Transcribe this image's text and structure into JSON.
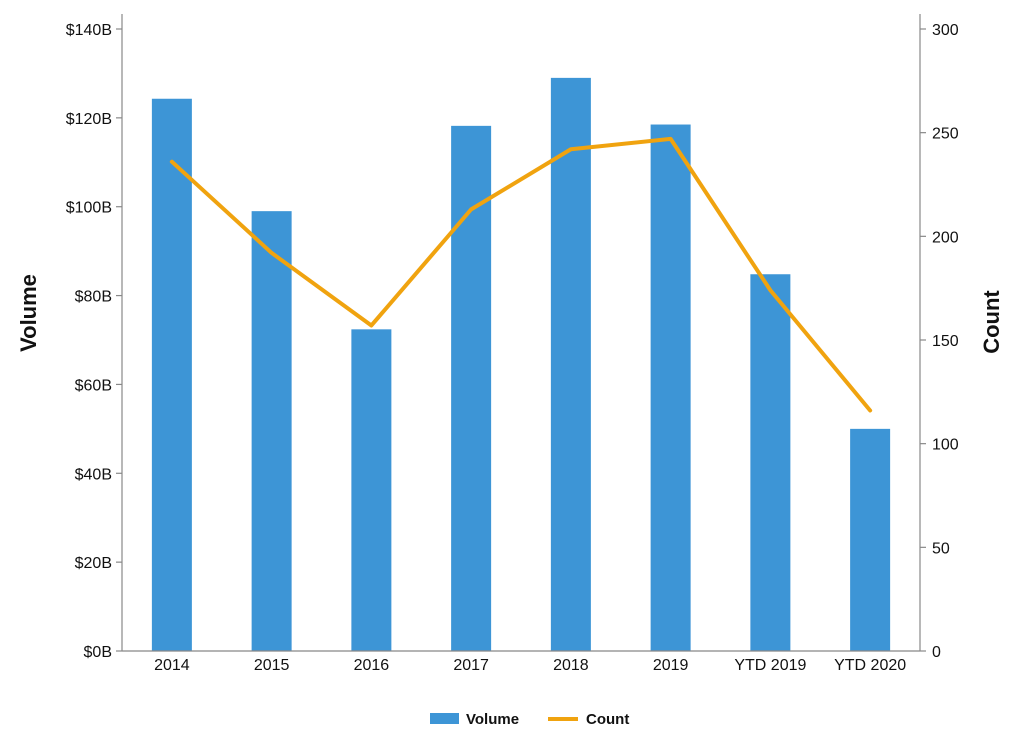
{
  "chart_data": {
    "type": "bar",
    "categories": [
      "2014",
      "2015",
      "2016",
      "2017",
      "2018",
      "2019",
      "YTD 2019",
      "YTD 2020"
    ],
    "series": [
      {
        "name": "Volume",
        "type": "bar",
        "axis": "left",
        "color": "#3d95d6",
        "values": [
          124.3,
          99.0,
          72.4,
          118.2,
          129.0,
          118.5,
          84.8,
          50.0
        ]
      },
      {
        "name": "Count",
        "type": "line",
        "axis": "right",
        "color": "#f0a30f",
        "values": [
          236,
          192,
          157,
          213,
          242,
          247,
          174,
          116
        ]
      }
    ],
    "ylabel": "Volume",
    "y2label": "Count",
    "ylim": [
      0,
      140
    ],
    "y2lim": [
      0,
      300
    ],
    "yticks": [
      "$0B",
      "$20B",
      "$40B",
      "$60B",
      "$80B",
      "$100B",
      "$120B",
      "$140B"
    ],
    "y2ticks": [
      "0",
      "50",
      "100",
      "150",
      "200",
      "250",
      "300"
    ],
    "legend_position": "bottom-center",
    "grid": false
  }
}
